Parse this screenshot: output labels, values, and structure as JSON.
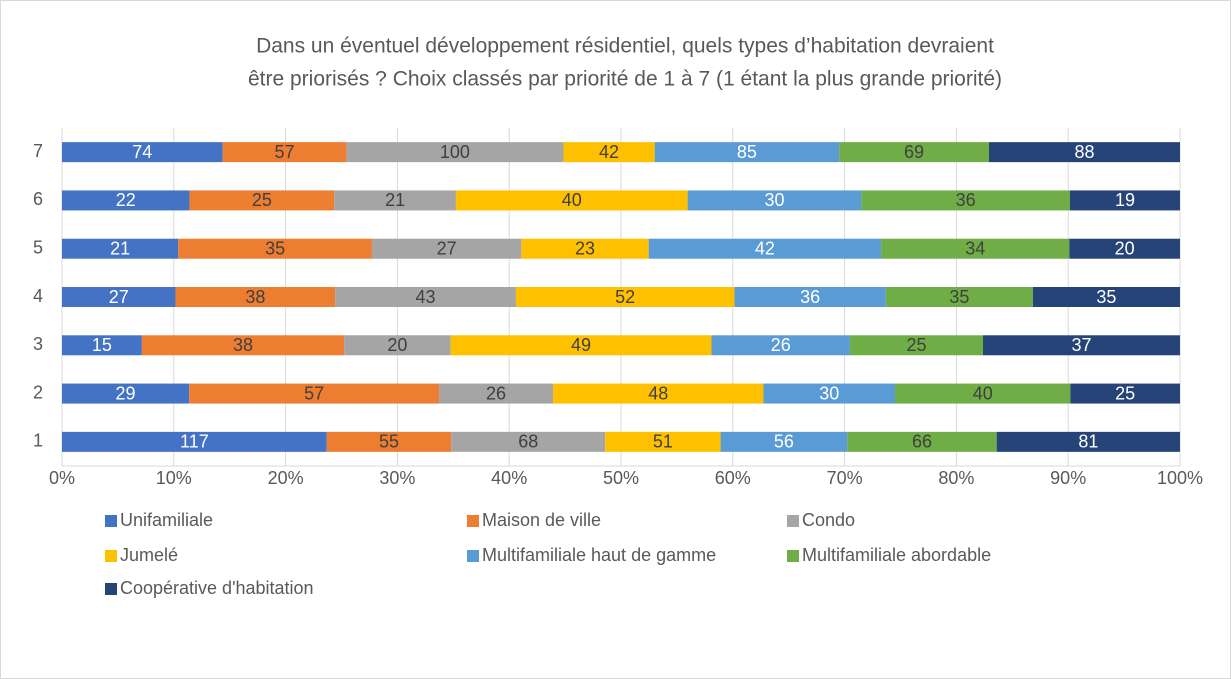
{
  "chart_data": {
    "type": "bar",
    "orientation": "horizontal",
    "stacked": "percent",
    "title": [
      "Dans un éventuel développement résidentiel, quels types d’habitation devraient",
      "être priorisés ? Choix classés par priorité de 1 à 7 (1 étant la plus grande priorité)"
    ],
    "categories": [
      "1",
      "2",
      "3",
      "4",
      "5",
      "6",
      "7"
    ],
    "series": [
      {
        "name": "Unifamiliale",
        "color": "#4472c4",
        "label_color": "#ffffff",
        "values": [
          117,
          29,
          15,
          27,
          21,
          22,
          74
        ]
      },
      {
        "name": "Maison de ville",
        "color": "#ed7d31",
        "label_color": "#404040",
        "values": [
          55,
          57,
          38,
          38,
          35,
          25,
          57
        ]
      },
      {
        "name": "Condo",
        "color": "#a5a5a5",
        "label_color": "#404040",
        "values": [
          68,
          26,
          20,
          43,
          27,
          21,
          100
        ]
      },
      {
        "name": "Jumelé",
        "color": "#ffc000",
        "label_color": "#404040",
        "values": [
          51,
          48,
          49,
          52,
          23,
          40,
          42
        ]
      },
      {
        "name": "Multifamiliale haut de gamme",
        "color": "#5b9bd5",
        "label_color": "#ffffff",
        "values": [
          56,
          30,
          26,
          36,
          42,
          30,
          85
        ]
      },
      {
        "name": "Multifamiliale abordable",
        "color": "#70ad47",
        "label_color": "#404040",
        "values": [
          66,
          40,
          25,
          35,
          34,
          36,
          69
        ]
      },
      {
        "name": "Coopérative d'habitation",
        "color": "#264478",
        "label_color": "#ffffff",
        "values": [
          81,
          25,
          37,
          35,
          20,
          19,
          88
        ]
      }
    ],
    "xlim": [
      0,
      100
    ],
    "xticks": [
      {
        "value": 0,
        "label": "0%"
      },
      {
        "value": 10,
        "label": "10%"
      },
      {
        "value": 20,
        "label": "20%"
      },
      {
        "value": 30,
        "label": "30%"
      },
      {
        "value": 40,
        "label": "40%"
      },
      {
        "value": 50,
        "label": "50%"
      },
      {
        "value": 60,
        "label": "60%"
      },
      {
        "value": 70,
        "label": "70%"
      },
      {
        "value": 80,
        "label": "80%"
      },
      {
        "value": 90,
        "label": "90%"
      },
      {
        "value": 100,
        "label": "100%"
      }
    ],
    "grid": true,
    "legend": "bottom"
  }
}
